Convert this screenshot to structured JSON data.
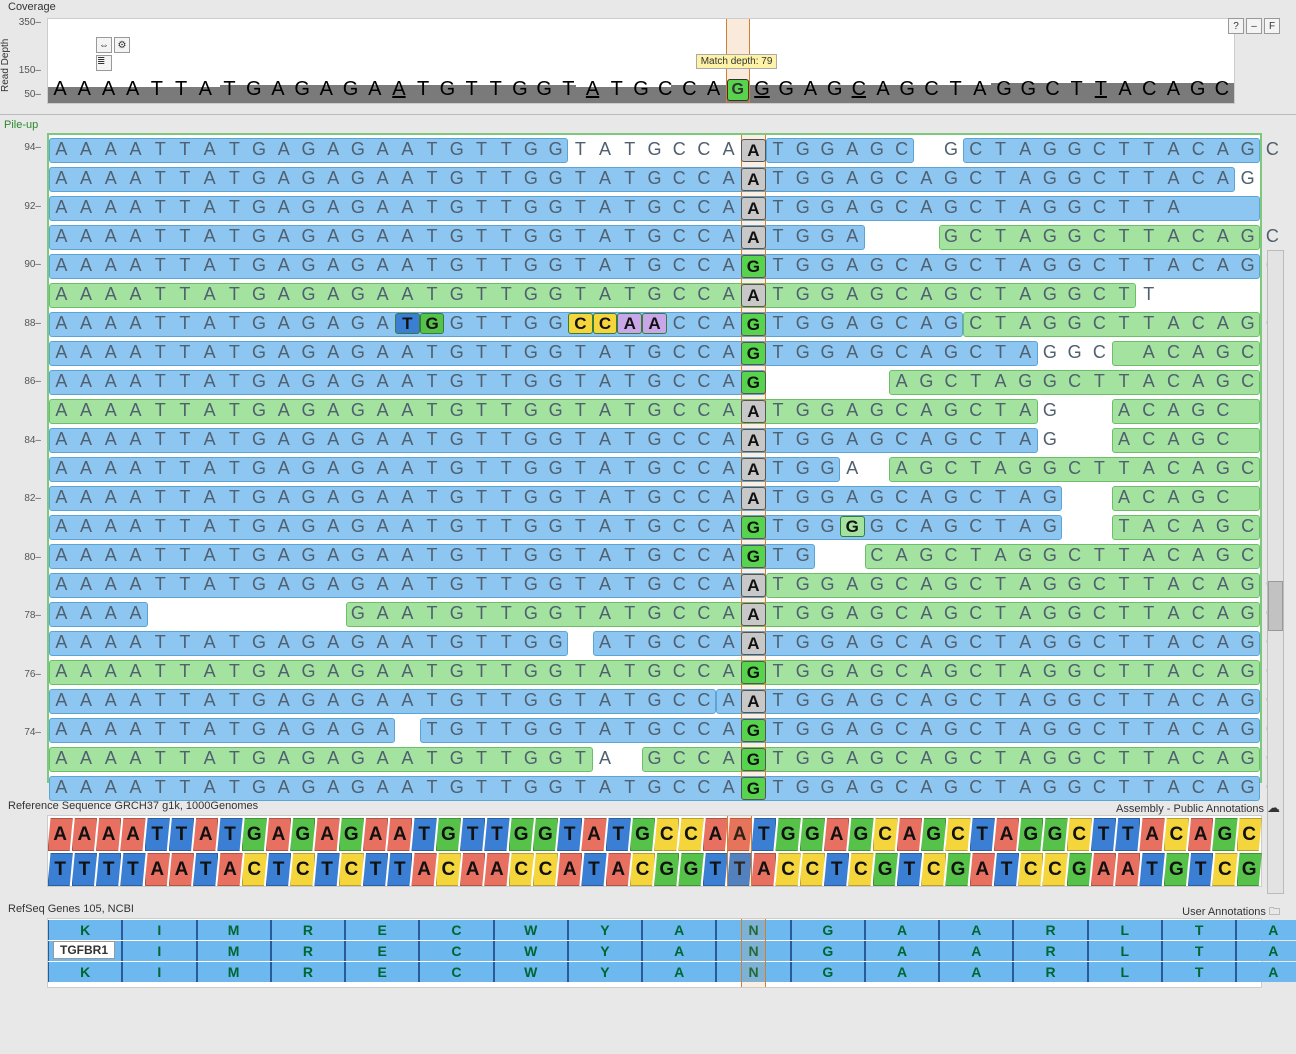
{
  "coverage": {
    "title": "Coverage",
    "yAxisLabel": "Read Depth",
    "yTicks": [
      350,
      150,
      50
    ],
    "histBars": [
      {
        "x": 0.0,
        "w": 0.145,
        "h": 0.19
      },
      {
        "x": 0.145,
        "w": 0.3,
        "h": 0.22
      },
      {
        "x": 0.445,
        "w": 0.08,
        "h": 0.195
      },
      {
        "x": 0.525,
        "w": 0.27,
        "h": 0.22
      },
      {
        "x": 0.795,
        "w": 0.205,
        "h": 0.24
      }
    ],
    "consensus": "AAAATTATGAGAGAATGTTGGTATGCCA/TGGAGCAGCTAGGCTTACAGC",
    "underlineIdx": [
      14,
      22,
      29,
      33,
      43
    ],
    "tooltip": "Match depth: 79",
    "variant": {
      "ref": "A",
      "alt": "G",
      "colIndex": 28,
      "altColor": "#57d34d"
    },
    "iconsLeft": [
      "arrows-icon",
      "gear-icon",
      "layers-icon"
    ],
    "iconsRight": [
      "help-icon",
      "minimize-icon",
      "filter-icon"
    ]
  },
  "pileup": {
    "title": "Pile-up",
    "nCols": 49,
    "variantCol": 28,
    "yTicks": [
      94,
      92,
      90,
      88,
      86,
      84,
      82,
      80,
      78,
      76,
      74
    ],
    "rows": [
      {
        "segs": [
          {
            "c": "blue",
            "s": 0,
            "e": 21
          },
          {
            "c": "blue",
            "s": 29,
            "e": 35
          },
          {
            "c": "blue",
            "s": 37,
            "e": 49
          }
        ],
        "variant": "A",
        "bases": "AAAATTATGAGAGAATGTTGGTATGCCAATGGAGC GCTAGGCTTACAGC"
      },
      {
        "segs": [
          {
            "c": "blue",
            "s": 0,
            "e": 48
          }
        ],
        "variant": "A",
        "bases": "AAAATTATGAGAGAATGTTGGTATGCCAATGGAGCAGCTAGGCTTACAG"
      },
      {
        "segs": [
          {
            "c": "blue",
            "s": 0,
            "e": 49
          }
        ],
        "variant": "A",
        "bases": "AAAATTATGAGAGAATGTTGGTATGCCAATGGAGCAGCTAGGCTTA   "
      },
      {
        "segs": [
          {
            "c": "blue",
            "s": 0,
            "e": 33
          },
          {
            "c": "green",
            "s": 36,
            "e": 49
          }
        ],
        "variant": "A",
        "bases": "AAAATTATGAGAGAATGTTGGTATGCCAATGGA   GCTAGGCTTACAGC"
      },
      {
        "segs": [
          {
            "c": "blue",
            "s": 0,
            "e": 49
          }
        ],
        "variant": "G",
        "bases": "AAAATTATGAGAGAATGTTGGTATGCCAGTGGAGCAGCTAGGCTTACAGC"
      },
      {
        "segs": [
          {
            "c": "green",
            "s": 0,
            "e": 44
          }
        ],
        "variant": "A",
        "bases": "AAAATTATGAGAGAATGTTGGTATGCCAATGGAGCAGCTAGGCTT"
      },
      {
        "segs": [
          {
            "c": "blue",
            "s": 0,
            "e": 37
          },
          {
            "c": "green",
            "s": 37,
            "e": 49
          }
        ],
        "variant": "G",
        "bases": "AAAATTATGAGAGATGGTTGGCCAACCAGTGGAGCAGCTAGGCTTACAGC",
        "mm": [
          {
            "i": 14,
            "b": "T",
            "bg": "#3a7fd4"
          },
          {
            "i": 15,
            "b": "G",
            "bg": "#57c24a"
          },
          {
            "i": 21,
            "b": "C",
            "bg": "#f4d63c"
          },
          {
            "i": 22,
            "b": "C",
            "bg": "#f4d63c"
          },
          {
            "i": 23,
            "b": "A",
            "bg": "#c9a6e8"
          },
          {
            "i": 24,
            "b": "A",
            "bg": "#c9a6e8"
          }
        ]
      },
      {
        "segs": [
          {
            "c": "blue",
            "s": 0,
            "e": 40
          },
          {
            "c": "green",
            "s": 43,
            "e": 49
          }
        ],
        "variant": "G",
        "bases": "AAAATTATGAGAGAATGTTGGTATGCCAGTGGAGCAGCTAGGC ACAGC"
      },
      {
        "segs": [
          {
            "c": "blue",
            "s": 0,
            "e": 29
          },
          {
            "c": "green",
            "s": 34,
            "e": 49
          }
        ],
        "variant": "G",
        "bases": "AAAATTATGAGAGAATGTTGGTATGCCAG     AGCTAGGCTTACAGC"
      },
      {
        "segs": [
          {
            "c": "green",
            "s": 0,
            "e": 40
          },
          {
            "c": "green",
            "s": 43,
            "e": 49
          }
        ],
        "variant": "A",
        "bases": "AAAATTATGAGAGAATGTTGGTATGCCAATGGAGCAGCTAG  ACAGC"
      },
      {
        "segs": [
          {
            "c": "blue",
            "s": 0,
            "e": 40
          },
          {
            "c": "green",
            "s": 43,
            "e": 49
          }
        ],
        "variant": "A",
        "bases": "AAAATTATGAGAGAATGTTGGTATGCCAATGGAGCAGCTAG  ACAGC"
      },
      {
        "segs": [
          {
            "c": "blue",
            "s": 0,
            "e": 32
          },
          {
            "c": "green",
            "s": 34,
            "e": 49
          }
        ],
        "variant": "A",
        "bases": "AAAATTATGAGAGAATGTTGGTATGCCAATGGA AGCTAGGCTTACAGC"
      },
      {
        "segs": [
          {
            "c": "blue",
            "s": 0,
            "e": 41
          },
          {
            "c": "green",
            "s": 43,
            "e": 49
          }
        ],
        "variant": "A",
        "bases": "AAAATTATGAGAGAATGTTGGTATGCCAATGGAGCAGCTAG  ACAGC"
      },
      {
        "segs": [
          {
            "c": "blue",
            "s": 0,
            "e": 41
          },
          {
            "c": "green",
            "s": 43,
            "e": 49
          }
        ],
        "variant": "G",
        "bases": "AAAATTATGAGAGAATGTTGGTATGCCAGTGGGGCAGCTAG  TACAGC",
        "mm": [
          {
            "i": 32,
            "b": "G",
            "bg": "#a3e29f"
          }
        ]
      },
      {
        "segs": [
          {
            "c": "blue",
            "s": 0,
            "e": 31
          },
          {
            "c": "green",
            "s": 33,
            "e": 49
          }
        ],
        "variant": "G",
        "bases": "AAAATTATGAGAGAATGTTGGTATGCCAGTG  CAGCTAGGCTTACAGC"
      },
      {
        "segs": [
          {
            "c": "blue",
            "s": 0,
            "e": 29
          },
          {
            "c": "green",
            "s": 29,
            "e": 49
          }
        ],
        "variant": "A",
        "bases": "AAAATTATGAGAGAATGTTGGTATGCCAATGGAGCAGCTAGGCTTACAGC"
      },
      {
        "segs": [
          {
            "c": "blue",
            "s": 0,
            "e": 4
          },
          {
            "c": "green",
            "s": 12,
            "e": 49
          }
        ],
        "variant": "A",
        "bases": "AAAA        GAATGTTGGTATGCCAATGGAGCAGCTAGGCTTACAGC"
      },
      {
        "segs": [
          {
            "c": "blue",
            "s": 0,
            "e": 21
          },
          {
            "c": "blue",
            "s": 22,
            "e": 49
          }
        ],
        "variant": "A",
        "bases": "AAAATTATGAGAGAATGTTGG ATGCCAATGGAGCAGCTAGGCTTACAGC"
      },
      {
        "segs": [
          {
            "c": "green",
            "s": 0,
            "e": 49
          }
        ],
        "variant": "G",
        "bases": "AAAATTATGAGAGAATGTTGGTATGCCAGTGGAGCAGCTAGGCTTACAGC"
      },
      {
        "segs": [
          {
            "c": "blue",
            "s": 0,
            "e": 27
          },
          {
            "c": "blue",
            "s": 27,
            "e": 49
          }
        ],
        "variant": "A",
        "bases": "AAAATTATGAGAGAATGTTGGTATGCCAATGGAGCAGCTAGGCTTACAGC"
      },
      {
        "segs": [
          {
            "c": "blue",
            "s": 0,
            "e": 14
          },
          {
            "c": "blue",
            "s": 15,
            "e": 49
          }
        ],
        "variant": "G",
        "bases": "AAAATTATGAGAGA TGTTGGTATGCCAGTGGAGCAGCTAGGCTTACAGC"
      },
      {
        "segs": [
          {
            "c": "green",
            "s": 0,
            "e": 22
          },
          {
            "c": "green",
            "s": 24,
            "e": 49
          }
        ],
        "variant": "G",
        "bases": "AAAATTATGAGAGAATGTTGGTA GCCAGTGGAGCAGCTAGGCTTACAGC"
      },
      {
        "segs": [
          {
            "c": "blue",
            "s": 0,
            "e": 49
          }
        ],
        "variant": "G",
        "bases": "AAAATTATGAGAGAATGTTGGTATGCCAGTGGAGCAGCTAGGCTTACAGC"
      }
    ]
  },
  "reference": {
    "title": "Reference Sequence GRCH37 g1k, 1000Genomes",
    "rightLabel": "Assembly - Public Annotations",
    "forward": "AAAATTATGAGAGAATGTTGGTATGCCAATGGAGCAGCTAGGCTTACAGC",
    "reverse": "TTTTAATACTCTCTTACAACCATACGGTTACCTCGTCGATCCGAATGTCG",
    "variantCol": 28,
    "colors": {
      "A": "#e87060",
      "C": "#f4d63c",
      "G": "#57c24a",
      "T": "#3a7fd4"
    }
  },
  "genes": {
    "title": "RefSeq Genes 105, NCBI",
    "rightLabel": "User Annotations",
    "geneName": "TGFBR1",
    "aaStart": 1,
    "aaLetters": [
      "K",
      "I",
      "M",
      "R",
      "E",
      "C",
      "W",
      "Y",
      "A",
      "N",
      "G",
      "A",
      "A",
      "R",
      "L",
      "T",
      "A"
    ],
    "aaLetters2": [
      "K",
      "I",
      "M",
      "R",
      "E",
      "C",
      "W",
      "Y",
      "A",
      "N",
      "G",
      "A",
      "A",
      "R",
      "L",
      "T",
      "A"
    ],
    "aaLetters3": [
      "K",
      "I",
      "M",
      "R",
      "E",
      "C",
      "W",
      "Y",
      "A",
      "N",
      "G",
      "A",
      "A",
      "R",
      "L",
      "T",
      "A"
    ],
    "variantCol": 28,
    "nCols": 49
  }
}
